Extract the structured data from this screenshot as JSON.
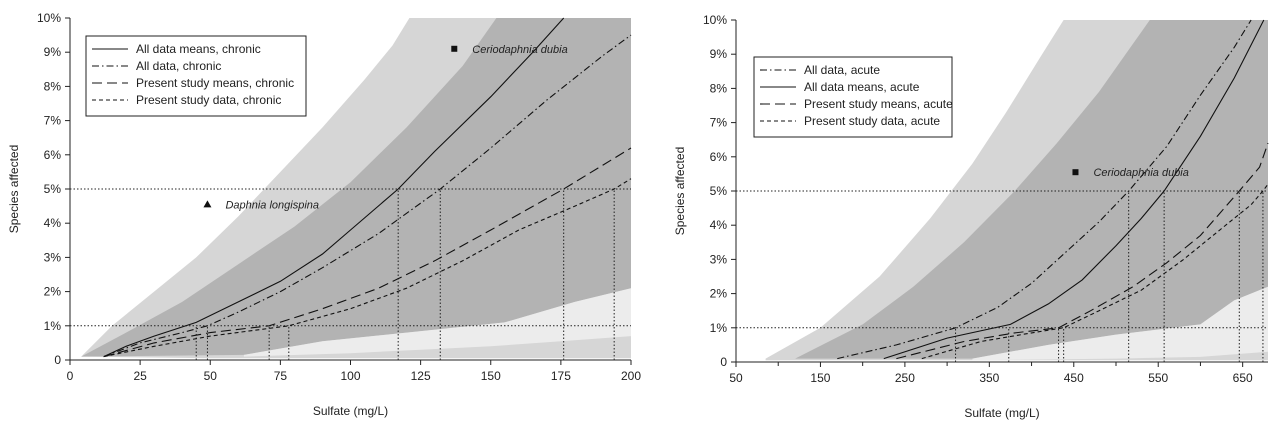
{
  "chart_data": [
    {
      "type": "line",
      "panel": "left",
      "xlabel": "Sulfate (mg/L)",
      "ylabel": "Species affected",
      "xlim": [
        0,
        200
      ],
      "ylim": [
        0,
        10
      ],
      "x_ticks": [
        0,
        25,
        50,
        75,
        100,
        125,
        150,
        175,
        200
      ],
      "x_tick_labels": [
        "0",
        "25",
        "50",
        "75",
        "100",
        "125",
        "150",
        "175",
        "200"
      ],
      "y_ticks": [
        0,
        1,
        2,
        3,
        4,
        5,
        6,
        7,
        8,
        9,
        10
      ],
      "y_tick_labels": [
        "0",
        "1%",
        "2%",
        "3%",
        "4%",
        "5%",
        "6%",
        "7%",
        "8%",
        "9%",
        "10%"
      ],
      "legend_position": "top-left",
      "legend": [
        "All data means, chronic",
        "All data, chronic",
        "Present study means, chronic",
        "Present study data, chronic"
      ],
      "bands": [
        {
          "name": "light",
          "color": "#d6d6d6",
          "upper": [
            [
              4,
              0.1
            ],
            [
              15,
              1.0
            ],
            [
              30,
              2.0
            ],
            [
              45,
              3.0
            ],
            [
              60,
              4.2
            ],
            [
              75,
              5.5
            ],
            [
              90,
              6.8
            ],
            [
              105,
              8.2
            ],
            [
              115,
              9.2
            ],
            [
              121,
              10
            ]
          ],
          "lower": [
            [
              200,
              10
            ],
            [
              200,
              0.05
            ],
            [
              62,
              0.05
            ],
            [
              50,
              0.05
            ],
            [
              4,
              0.1
            ]
          ]
        },
        {
          "name": "mid",
          "color": "#b3b3b3",
          "upper": [
            [
              4,
              0.1
            ],
            [
              20,
              0.8
            ],
            [
              40,
              1.7
            ],
            [
              60,
              2.8
            ],
            [
              80,
              3.9
            ],
            [
              100,
              5.2
            ],
            [
              120,
              6.8
            ],
            [
              140,
              8.6
            ],
            [
              152,
              10
            ]
          ],
          "lower": [
            [
              200,
              10
            ],
            [
              200,
              2.1
            ],
            [
              180,
              1.7
            ],
            [
              155,
              1.1
            ],
            [
              120,
              0.8
            ],
            [
              90,
              0.55
            ],
            [
              62,
              0.15
            ],
            [
              4,
              0.1
            ]
          ]
        },
        {
          "name": "pale",
          "color": "#ececec",
          "upper": [
            [
              62,
              0.15
            ],
            [
              90,
              0.55
            ],
            [
              120,
              0.8
            ],
            [
              155,
              1.1
            ],
            [
              180,
              1.7
            ],
            [
              200,
              2.1
            ]
          ],
          "lower": [
            [
              200,
              0.7
            ],
            [
              175,
              0.55
            ],
            [
              150,
              0.4
            ],
            [
              125,
              0.3
            ],
            [
              100,
              0.2
            ],
            [
              62,
              0.1
            ]
          ]
        }
      ],
      "series": [
        {
          "name": "All data means, chronic",
          "dash": "solid",
          "points": [
            [
              12,
              0.1
            ],
            [
              20,
              0.4
            ],
            [
              30,
              0.7
            ],
            [
              45,
              1.1
            ],
            [
              60,
              1.7
            ],
            [
              75,
              2.3
            ],
            [
              90,
              3.1
            ],
            [
              100,
              3.8
            ],
            [
              117,
              5.0
            ],
            [
              130,
              6.1
            ],
            [
              150,
              7.7
            ],
            [
              165,
              9.0
            ],
            [
              176,
              10
            ]
          ]
        },
        {
          "name": "All data, chronic",
          "dash": "dashdot",
          "points": [
            [
              12,
              0.1
            ],
            [
              25,
              0.5
            ],
            [
              40,
              0.8
            ],
            [
              49,
              1.0
            ],
            [
              60,
              1.4
            ],
            [
              75,
              2.0
            ],
            [
              90,
              2.7
            ],
            [
              110,
              3.7
            ],
            [
              132,
              5.0
            ],
            [
              150,
              6.2
            ],
            [
              170,
              7.6
            ],
            [
              190,
              8.9
            ],
            [
              200,
              9.5
            ]
          ]
        },
        {
          "name": "Present study means, chronic",
          "dash": "longdash",
          "points": [
            [
              12,
              0.1
            ],
            [
              30,
              0.5
            ],
            [
              50,
              0.8
            ],
            [
              71,
              1.0
            ],
            [
              90,
              1.5
            ],
            [
              110,
              2.1
            ],
            [
              130,
              2.9
            ],
            [
              150,
              3.8
            ],
            [
              176,
              5.0
            ],
            [
              190,
              5.7
            ],
            [
              200,
              6.2
            ]
          ]
        },
        {
          "name": "Present study data, chronic",
          "dash": "shortdash",
          "points": [
            [
              12,
              0.1
            ],
            [
              30,
              0.4
            ],
            [
              50,
              0.7
            ],
            [
              78,
              1.0
            ],
            [
              100,
              1.5
            ],
            [
              120,
              2.1
            ],
            [
              140,
              2.9
            ],
            [
              160,
              3.8
            ],
            [
              180,
              4.5
            ],
            [
              194,
              5.0
            ],
            [
              200,
              5.3
            ]
          ]
        }
      ],
      "reference_lines": {
        "y": [
          1,
          5
        ],
        "x_at_1pct": [
          45,
          49,
          71,
          78
        ],
        "x_at_5pct": [
          117,
          132,
          176,
          194
        ]
      },
      "markers": [
        {
          "label": "Ceriodaphnia dubia",
          "x": 137,
          "y": 9.1,
          "shape": "square"
        },
        {
          "label": "Daphnia longispina",
          "x": 49,
          "y": 4.55,
          "shape": "triangle"
        }
      ]
    },
    {
      "type": "line",
      "panel": "right",
      "xlabel": "Sulfate (mg/L)",
      "ylabel": "Species affected",
      "xlim": [
        50,
        680
      ],
      "ylim": [
        0,
        10
      ],
      "x_ticks": [
        50,
        150,
        250,
        350,
        450,
        550,
        650
      ],
      "x_tick_labels": [
        "50",
        "150",
        "250",
        "350",
        "450",
        "550",
        "650"
      ],
      "x_minor_ticks": [
        100,
        200,
        300,
        400,
        500,
        600
      ],
      "y_ticks": [
        0,
        1,
        2,
        3,
        4,
        5,
        6,
        7,
        8,
        9,
        10
      ],
      "y_tick_labels": [
        "0",
        "1%",
        "2%",
        "3%",
        "4%",
        "5%",
        "6%",
        "7%",
        "8%",
        "9%",
        "10%"
      ],
      "legend_position": "top-left",
      "legend": [
        "All data, acute",
        "All data means, acute",
        "Present study means, acute",
        "Present study data, acute"
      ],
      "bands": [
        {
          "name": "light",
          "color": "#d6d6d6",
          "upper": [
            [
              85,
              0.1
            ],
            [
              150,
              1.0
            ],
            [
              220,
              2.5
            ],
            [
              280,
              4.2
            ],
            [
              330,
              5.8
            ],
            [
              370,
              7.3
            ],
            [
              410,
              8.9
            ],
            [
              438,
              10
            ]
          ],
          "lower": [
            [
              680,
              10
            ],
            [
              680,
              0.05
            ],
            [
              85,
              0.05
            ]
          ]
        },
        {
          "name": "mid",
          "color": "#b3b3b3",
          "upper": [
            [
              120,
              0.1
            ],
            [
              200,
              1.1
            ],
            [
              260,
              2.2
            ],
            [
              320,
              3.5
            ],
            [
              380,
              5.0
            ],
            [
              430,
              6.4
            ],
            [
              480,
              7.9
            ],
            [
              520,
              9.3
            ],
            [
              540,
              10
            ]
          ],
          "lower": [
            [
              680,
              10
            ],
            [
              680,
              2.2
            ],
            [
              640,
              1.8
            ],
            [
              600,
              1.1
            ],
            [
              500,
              0.8
            ],
            [
              420,
              0.5
            ],
            [
              330,
              0.1
            ],
            [
              120,
              0.1
            ]
          ]
        },
        {
          "name": "pale",
          "color": "#ececec",
          "upper": [
            [
              330,
              0.1
            ],
            [
              420,
              0.5
            ],
            [
              500,
              0.8
            ],
            [
              600,
              1.1
            ],
            [
              640,
              1.8
            ],
            [
              680,
              2.2
            ]
          ],
          "lower": [
            [
              680,
              0.3
            ],
            [
              600,
              0.15
            ],
            [
              500,
              0.1
            ],
            [
              330,
              0.05
            ]
          ]
        }
      ],
      "series": [
        {
          "name": "All data, acute",
          "dash": "dashdot",
          "points": [
            [
              170,
              0.1
            ],
            [
              240,
              0.5
            ],
            [
              310,
              1.0
            ],
            [
              360,
              1.6
            ],
            [
              400,
              2.3
            ],
            [
              440,
              3.2
            ],
            [
              480,
              4.1
            ],
            [
              515,
              5.0
            ],
            [
              560,
              6.3
            ],
            [
              600,
              7.8
            ],
            [
              640,
              9.2
            ],
            [
              660,
              10
            ]
          ]
        },
        {
          "name": "All data means, acute",
          "dash": "solid",
          "points": [
            [
              225,
              0.1
            ],
            [
              300,
              0.7
            ],
            [
              375,
              1.1
            ],
            [
              420,
              1.7
            ],
            [
              460,
              2.4
            ],
            [
              500,
              3.4
            ],
            [
              530,
              4.2
            ],
            [
              557,
              5.0
            ],
            [
              600,
              6.6
            ],
            [
              640,
              8.3
            ],
            [
              675,
              10
            ]
          ]
        },
        {
          "name": "Present study means, acute",
          "dash": "longdash",
          "points": [
            [
              240,
              0.1
            ],
            [
              320,
              0.6
            ],
            [
              380,
              0.85
            ],
            [
              432,
              1.0
            ],
            [
              470,
              1.5
            ],
            [
              520,
              2.2
            ],
            [
              560,
              2.9
            ],
            [
              600,
              3.7
            ],
            [
              646,
              5.0
            ],
            [
              670,
              5.7
            ],
            [
              680,
              6.4
            ]
          ]
        },
        {
          "name": "Present study data, acute",
          "dash": "shortdash",
          "points": [
            [
              270,
              0.1
            ],
            [
              340,
              0.6
            ],
            [
              400,
              0.85
            ],
            [
              438,
              1.0
            ],
            [
              480,
              1.5
            ],
            [
              530,
              2.1
            ],
            [
              580,
              3.0
            ],
            [
              620,
              3.8
            ],
            [
              660,
              4.6
            ],
            [
              674,
              5.0
            ],
            [
              680,
              5.2
            ]
          ]
        }
      ],
      "reference_lines": {
        "y": [
          1,
          5
        ],
        "x_at_1pct": [
          310,
          373,
          432,
          438
        ],
        "x_at_5pct": [
          515,
          557,
          646,
          674
        ]
      },
      "markers": [
        {
          "label": "Ceriodaphnia dubia",
          "x": 452,
          "y": 5.55,
          "shape": "square"
        }
      ]
    }
  ]
}
